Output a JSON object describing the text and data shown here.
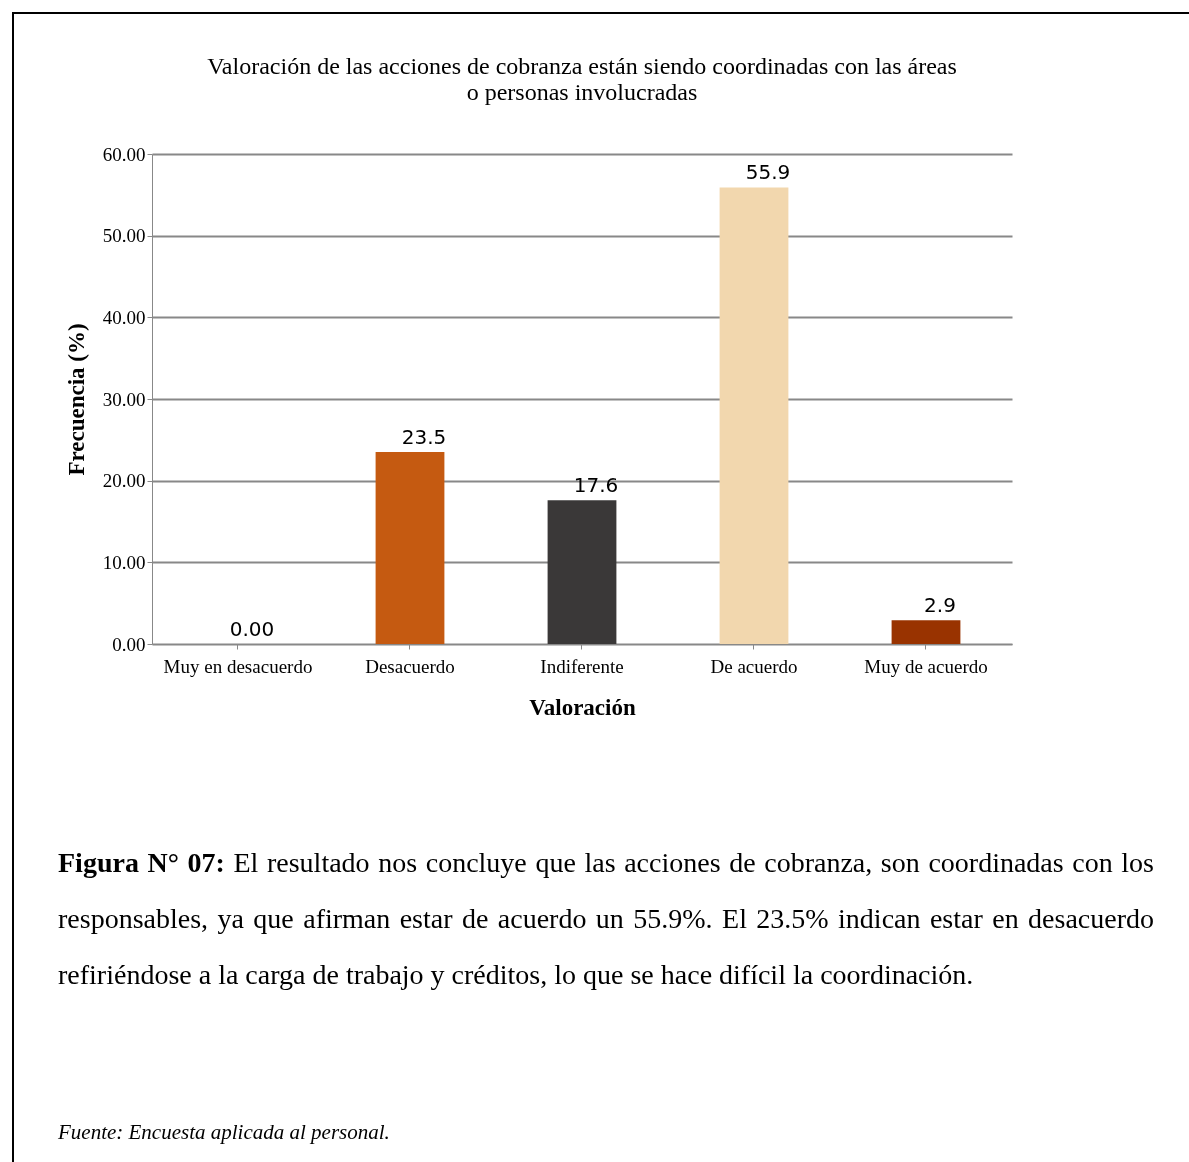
{
  "chart_data": {
    "type": "bar",
    "title": "Valoración de las acciones de cobranza están siendo coordinadas con las áreas\no personas involucradas",
    "xlabel": "Valoración",
    "ylabel": "Frecuencia (%)",
    "categories": [
      "Muy en desacuerdo",
      "Desacuerdo",
      "Indiferente",
      "De acuerdo",
      "Muy de acuerdo"
    ],
    "values": [
      0,
      23.5,
      17.6,
      55.9,
      2.9
    ],
    "colors": [
      "#4f6228",
      "#c55a11",
      "#3a3838",
      "#f2d7ae",
      "#993300"
    ],
    "value_labels": [
      "0.00",
      "23.5",
      "17.6",
      "55.9",
      "2.9"
    ],
    "ylim": [
      0,
      60
    ],
    "yticks": [
      {
        "value": 0,
        "label": "0.00"
      },
      {
        "value": 10,
        "label": "10.00"
      },
      {
        "value": 20,
        "label": "20.00"
      },
      {
        "value": 30,
        "label": "30.00"
      },
      {
        "value": 40,
        "label": "40.00"
      },
      {
        "value": 50,
        "label": "50.00"
      },
      {
        "value": 60,
        "label": "60.00"
      }
    ],
    "grid": "y",
    "legend": false,
    "annotations": [
      "Figura N° 07: El resultado nos concluye que las acciones de cobranza, son coordinadas con los responsables, ya que afirman estar de acuerdo un 55.9%. El 23.5% indican estar en desacuerdo refiriéndose a la carga de trabajo y créditos, lo que se hace difícil la coordinación.",
      "Fuente: Encuesta aplicada al personal."
    ]
  }
}
